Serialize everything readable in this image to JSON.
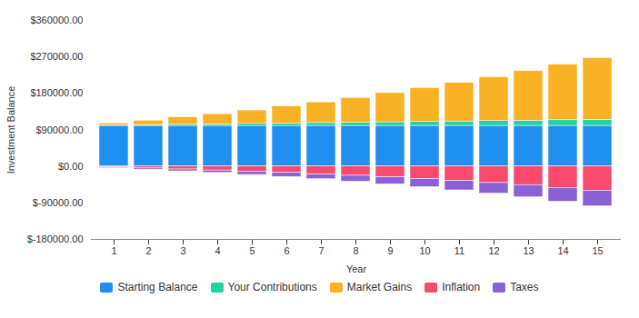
{
  "chart_data": {
    "type": "bar",
    "stacked": true,
    "x_label": "Year",
    "y_label": "Investment Balance",
    "categories": [
      1,
      2,
      3,
      4,
      5,
      6,
      7,
      8,
      9,
      10,
      11,
      12,
      13,
      14,
      15
    ],
    "series": [
      {
        "name": "Starting Balance",
        "color": "#1f8ff0",
        "values": [
          100000,
          100000,
          100000,
          100000,
          100000,
          100000,
          100000,
          100000,
          100000,
          100000,
          100000,
          100000,
          100000,
          100000,
          100000
        ]
      },
      {
        "name": "Your Contributions",
        "color": "#22d3a0",
        "values": [
          1000,
          2000,
          3000,
          4000,
          5000,
          6000,
          7000,
          8000,
          9000,
          10000,
          11000,
          12000,
          13000,
          14000,
          15000
        ]
      },
      {
        "name": "Market Gains",
        "color": "#fbb124",
        "values": [
          5000,
          11000,
          18000,
          25000,
          33000,
          42000,
          51000,
          61000,
          72000,
          83000,
          95000,
          108000,
          122000,
          137000,
          152000
        ]
      },
      {
        "name": "Inflation",
        "color": "#fb4a6b",
        "values": [
          -2500,
          -5000,
          -7500,
          -10000,
          -13000,
          -16000,
          -19500,
          -23000,
          -27000,
          -31000,
          -36000,
          -41000,
          -46000,
          -53000,
          -60000
        ]
      },
      {
        "name": "Taxes",
        "color": "#8b62d6",
        "values": [
          -1500,
          -3000,
          -4500,
          -6000,
          -8000,
          -10000,
          -12000,
          -14500,
          -17000,
          -20000,
          -23000,
          -26000,
          -30000,
          -34000,
          -38000
        ]
      }
    ],
    "ylim": [
      -180000,
      360000
    ],
    "yticks": [
      {
        "value": -180000,
        "label": "$-180000.00"
      },
      {
        "value": -90000,
        "label": "$-90000.00"
      },
      {
        "value": 0,
        "label": "$0.00"
      },
      {
        "value": 90000,
        "label": "$90000.00"
      },
      {
        "value": 180000,
        "label": "$180000.00"
      },
      {
        "value": 270000,
        "label": "$270000.00"
      },
      {
        "value": 360000,
        "label": "$360000.00"
      }
    ],
    "grid": false,
    "legend": "bottom"
  }
}
